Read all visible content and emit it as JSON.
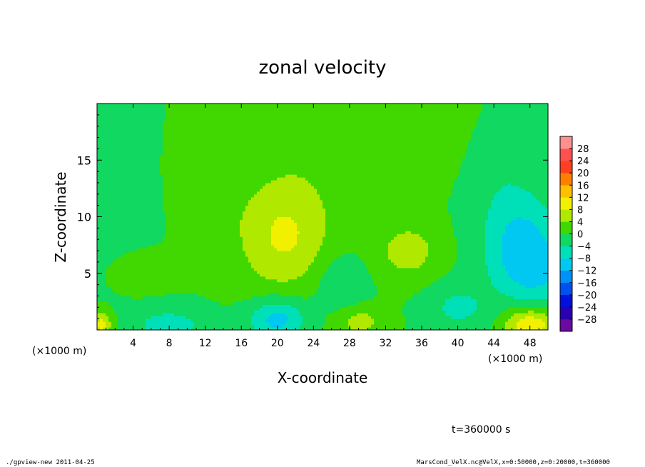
{
  "chart_data": {
    "type": "heatmap",
    "title": "zonal velocity",
    "xlabel": "X-coordinate",
    "ylabel": "Z-coordinate",
    "x_unit_left": "(×1000 m)",
    "x_unit_right": "(×1000 m)",
    "xlim": [
      0,
      50
    ],
    "ylim": [
      0,
      20
    ],
    "x_ticks": [
      4,
      8,
      12,
      16,
      20,
      24,
      28,
      32,
      36,
      40,
      44,
      48
    ],
    "y_ticks": [
      5,
      10,
      15
    ],
    "colorbar": {
      "levels": [
        -30,
        -28,
        -24,
        -20,
        -16,
        -12,
        -8,
        -4,
        0,
        4,
        8,
        12,
        16,
        20,
        24,
        28,
        30
      ],
      "labels": [
        "28",
        "24",
        "20",
        "16",
        "12",
        "8",
        "4",
        "0",
        "−4",
        "−8",
        "−12",
        "−16",
        "−20",
        "−24",
        "−28"
      ],
      "label_values": [
        28,
        24,
        20,
        16,
        12,
        8,
        4,
        0,
        -4,
        -8,
        -12,
        -16,
        -20,
        -24,
        -28
      ],
      "colors": [
        "#6a0aa0",
        "#2a00b0",
        "#0010dd",
        "#0050f0",
        "#0090f8",
        "#00c8f0",
        "#00e0b8",
        "#10d860",
        "#40d800",
        "#b0e800",
        "#f0f000",
        "#ffc000",
        "#ff8000",
        "#ff4020",
        "#ff5050",
        "#ff9090"
      ]
    },
    "field_background": 0,
    "field_features": [
      {
        "x": 20.5,
        "z": 7.8,
        "value": 7,
        "sx": 3.5,
        "sz": 3.2
      },
      {
        "x": 22,
        "z": 12,
        "value": 3,
        "sx": 4,
        "sz": 4
      },
      {
        "x": 34.5,
        "z": 7,
        "value": 6,
        "sx": 2.5,
        "sz": 1.8
      },
      {
        "x": 36,
        "z": 17,
        "value": 3,
        "sx": 5,
        "sz": 3
      },
      {
        "x": 47,
        "z": 8,
        "value": -9,
        "sx": 3,
        "sz": 3
      },
      {
        "x": 49,
        "z": 5,
        "value": -6,
        "sx": 3,
        "sz": 2
      },
      {
        "x": 4,
        "z": 5.5,
        "value": 3,
        "sx": 2.5,
        "sz": 1.5
      },
      {
        "x": 2,
        "z": 10,
        "value": -3,
        "sx": 3,
        "sz": 4
      },
      {
        "x": 20,
        "z": 1,
        "value": -10,
        "sx": 2.2,
        "sz": 1.3
      },
      {
        "x": 8,
        "z": 0.5,
        "value": -6,
        "sx": 3,
        "sz": 1
      },
      {
        "x": 27,
        "z": 4,
        "value": -4,
        "sx": 2,
        "sz": 2
      },
      {
        "x": 40,
        "z": 2,
        "value": -5,
        "sx": 2.5,
        "sz": 1.5
      },
      {
        "x": 48,
        "z": 0.5,
        "value": 12,
        "sx": 2,
        "sz": 1
      },
      {
        "x": 0.5,
        "z": 0.5,
        "value": 10,
        "sx": 0.8,
        "sz": 0.8
      },
      {
        "x": 12,
        "z": 12,
        "value": 2,
        "sx": 3,
        "sz": 3
      },
      {
        "x": 29,
        "z": 0.8,
        "value": 6,
        "sx": 2,
        "sz": 1
      },
      {
        "x": 44,
        "z": 15,
        "value": -3,
        "sx": 3,
        "sz": 3
      }
    ]
  },
  "footer": {
    "left": "./gpview-new  2011-04-25",
    "right": "MarsCond_VelX.nc@VelX,x=0:50000,z=0:20000,t=360000"
  },
  "time_label": "t=360000 s"
}
